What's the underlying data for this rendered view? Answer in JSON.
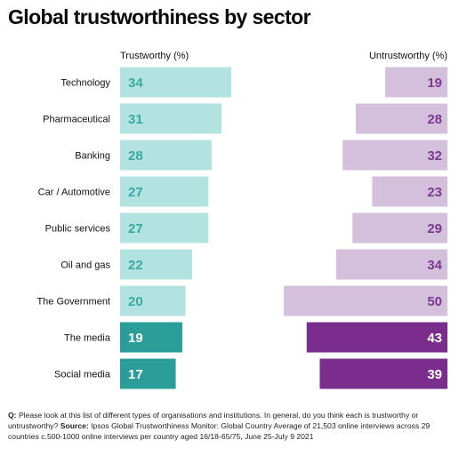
{
  "title": "Global trustworthiness by sector",
  "headers": {
    "trust": "Trustworthy (%)",
    "untrust": "Untrustworthy (%)"
  },
  "note": {
    "question_label": "Q:",
    "question": "Please look at this list of different types of organisations and institutions. In general, do you think each is trustworthy or untrustworthy?",
    "source_label": "Source:",
    "source": "Ipsos Global Trustworthiness Monitor: Global Country Average of 21,503 online interviews across 29 countries c.500-1000 online interviews per country aged 16/18-65/75, June 25-July 9 2021"
  },
  "colors": {
    "trust_light": "#b2e3e1",
    "trust_dark": "#2a9d98",
    "trust_text_light": "#3aa9a3",
    "untrust_light": "#d4bfdd",
    "untrust_dark": "#7a2d8c",
    "untrust_text_light": "#7b3a8e"
  },
  "chart_data": {
    "type": "bar",
    "categories": [
      "Technology",
      "Pharmaceutical",
      "Banking",
      "Car / Automotive",
      "Public services",
      "Oil and gas",
      "The Government",
      "The media",
      "Social media"
    ],
    "series": [
      {
        "name": "Trustworthy (%)",
        "values": [
          34,
          31,
          28,
          27,
          27,
          22,
          20,
          19,
          17
        ]
      },
      {
        "name": "Untrustworthy (%)",
        "values": [
          19,
          28,
          32,
          23,
          29,
          34,
          50,
          43,
          39
        ]
      }
    ],
    "highlighted": [
      "The media",
      "Social media"
    ]
  }
}
